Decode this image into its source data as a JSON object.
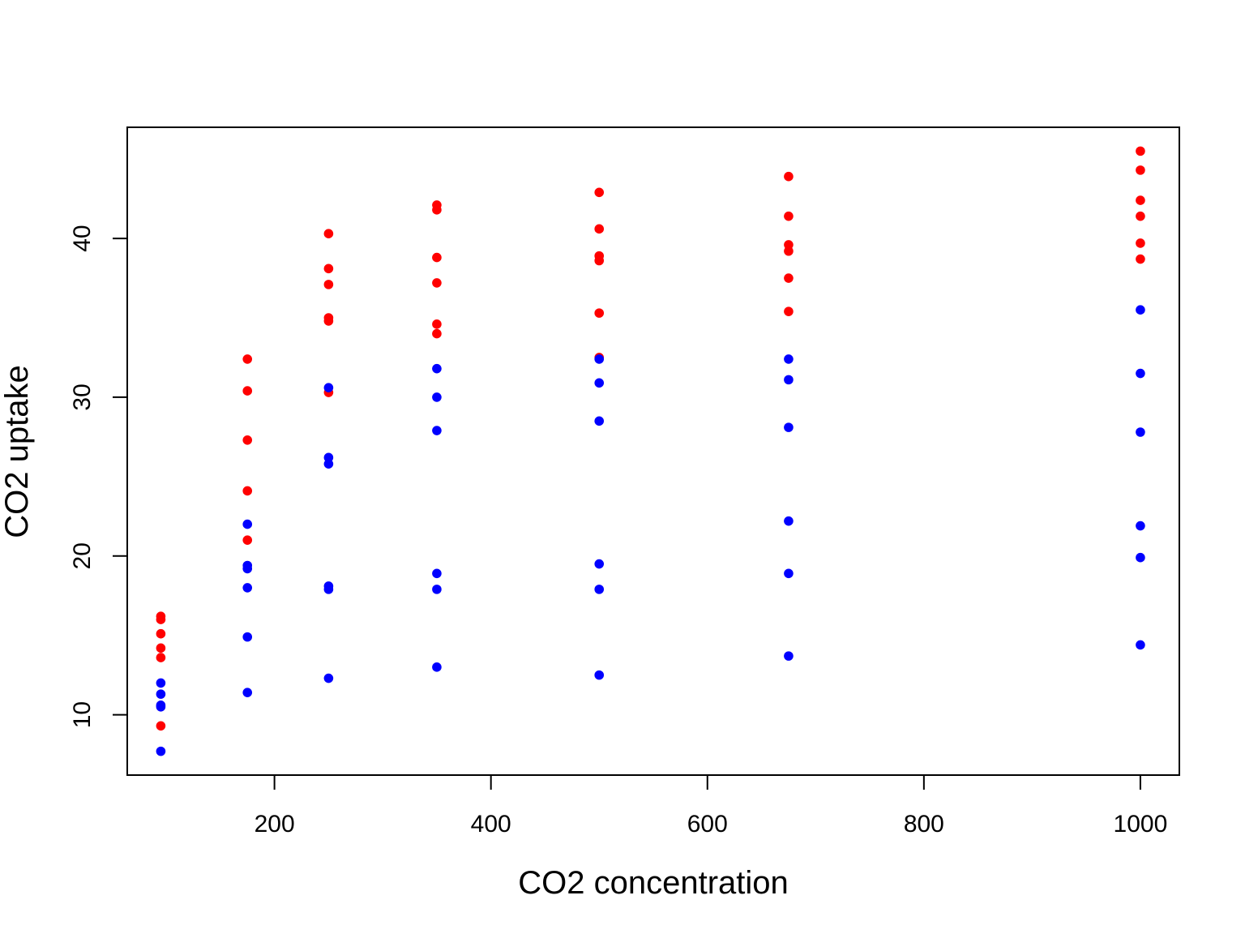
{
  "chart_data": {
    "type": "scatter",
    "title": "",
    "xlabel": "CO2 concentration",
    "ylabel": "CO2 uptake",
    "xlim": [
      64,
      1036
    ],
    "ylim": [
      6.2,
      47.0
    ],
    "x_ticks": [
      200,
      400,
      600,
      800,
      1000
    ],
    "y_ticks": [
      10,
      20,
      30,
      40
    ],
    "grid": false,
    "legend": "none",
    "series": [
      {
        "color": "#ff0000",
        "points": [
          [
            95,
            16.2
          ],
          [
            95,
            16.0
          ],
          [
            95,
            15.1
          ],
          [
            95,
            14.2
          ],
          [
            95,
            13.6
          ],
          [
            95,
            9.3
          ],
          [
            175,
            32.4
          ],
          [
            175,
            30.4
          ],
          [
            175,
            27.3
          ],
          [
            175,
            24.1
          ],
          [
            175,
            21.0
          ],
          [
            250,
            40.3
          ],
          [
            250,
            38.1
          ],
          [
            250,
            37.1
          ],
          [
            250,
            35.0
          ],
          [
            250,
            34.8
          ],
          [
            250,
            30.3
          ],
          [
            350,
            42.1
          ],
          [
            350,
            41.8
          ],
          [
            350,
            38.8
          ],
          [
            350,
            37.2
          ],
          [
            350,
            34.6
          ],
          [
            350,
            34.0
          ],
          [
            500,
            42.9
          ],
          [
            500,
            40.6
          ],
          [
            500,
            38.9
          ],
          [
            500,
            38.6
          ],
          [
            500,
            35.3
          ],
          [
            500,
            32.5
          ],
          [
            675,
            43.9
          ],
          [
            675,
            41.4
          ],
          [
            675,
            39.6
          ],
          [
            675,
            39.2
          ],
          [
            675,
            37.5
          ],
          [
            675,
            35.4
          ],
          [
            1000,
            45.5
          ],
          [
            1000,
            44.3
          ],
          [
            1000,
            42.4
          ],
          [
            1000,
            41.4
          ],
          [
            1000,
            39.7
          ],
          [
            1000,
            38.7
          ]
        ]
      },
      {
        "color": "#0000ff",
        "points": [
          [
            95,
            12.0
          ],
          [
            95,
            11.3
          ],
          [
            95,
            10.6
          ],
          [
            95,
            10.5
          ],
          [
            95,
            7.7
          ],
          [
            175,
            22.0
          ],
          [
            175,
            19.4
          ],
          [
            175,
            19.2
          ],
          [
            175,
            18.0
          ],
          [
            175,
            14.9
          ],
          [
            175,
            11.4
          ],
          [
            250,
            30.6
          ],
          [
            250,
            26.2
          ],
          [
            250,
            25.8
          ],
          [
            250,
            18.1
          ],
          [
            250,
            17.9
          ],
          [
            250,
            12.3
          ],
          [
            350,
            31.8
          ],
          [
            350,
            30.0
          ],
          [
            350,
            27.9
          ],
          [
            350,
            18.9
          ],
          [
            350,
            17.9
          ],
          [
            350,
            13.0
          ],
          [
            500,
            32.4
          ],
          [
            500,
            30.9
          ],
          [
            500,
            28.5
          ],
          [
            500,
            19.5
          ],
          [
            500,
            17.9
          ],
          [
            500,
            12.5
          ],
          [
            675,
            32.4
          ],
          [
            675,
            31.1
          ],
          [
            675,
            28.1
          ],
          [
            675,
            22.2
          ],
          [
            675,
            18.9
          ],
          [
            675,
            13.7
          ],
          [
            1000,
            35.5
          ],
          [
            1000,
            31.5
          ],
          [
            1000,
            27.8
          ],
          [
            1000,
            21.9
          ],
          [
            1000,
            19.9
          ],
          [
            1000,
            14.4
          ]
        ]
      }
    ]
  }
}
